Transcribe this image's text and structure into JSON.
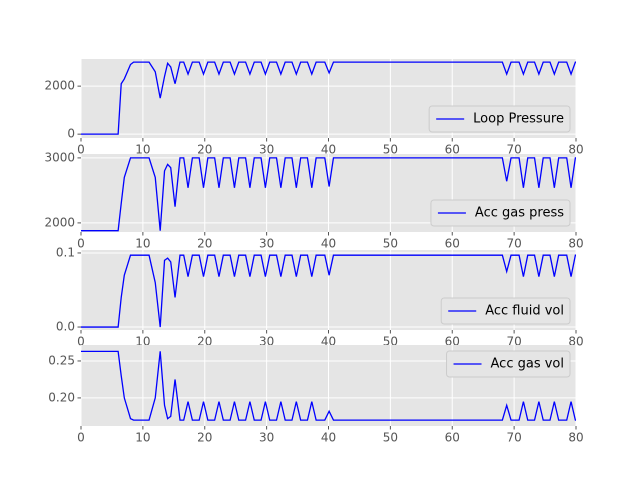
{
  "chart_data": [
    {
      "type": "line",
      "x": [
        0,
        6,
        6.5,
        7,
        8,
        8.5,
        11,
        12,
        12.8,
        13.5,
        14,
        14.5,
        15.2,
        16,
        16.6,
        17.3,
        18,
        19.1,
        19.8,
        20.5,
        21.6,
        22.3,
        23,
        24.1,
        24.8,
        25.5,
        26.6,
        27.3,
        28,
        29.1,
        29.8,
        30.5,
        31.6,
        32.3,
        33,
        34.1,
        34.8,
        35.5,
        36.6,
        37.3,
        38,
        39.4,
        40.1,
        40.8,
        68.1,
        68.8,
        69.5,
        70.8,
        71.5,
        72.2,
        73.3,
        74,
        74.7,
        75.8,
        76.5,
        77.2,
        78.5,
        79.2,
        79.9,
        80
      ],
      "series": [
        {
          "name": "Loop Pressure",
          "color": "#0000ff",
          "values": [
            0,
            0,
            2100,
            2300,
            2900,
            3000,
            3000,
            2600,
            1500,
            2400,
            2950,
            2800,
            2100,
            3000,
            3000,
            2500,
            3000,
            3000,
            2500,
            3000,
            3000,
            2500,
            3000,
            3000,
            2500,
            3000,
            3000,
            2500,
            3000,
            3000,
            2500,
            3000,
            3000,
            2500,
            3000,
            3000,
            2500,
            3000,
            3000,
            2500,
            3000,
            3000,
            2550,
            3000,
            3000,
            2500,
            3000,
            3000,
            2500,
            3000,
            3000,
            2500,
            3000,
            3000,
            2500,
            3000,
            3000,
            2500,
            3000,
            3000
          ]
        }
      ],
      "xlim": [
        0,
        80
      ],
      "xticks": [
        0,
        10,
        20,
        30,
        40,
        50,
        60,
        70,
        80
      ],
      "ylim": [
        -160,
        3130
      ],
      "yticks": [
        0,
        2000
      ],
      "grid": true,
      "legend": "lower right"
    },
    {
      "type": "line",
      "x": [
        0,
        6,
        6.5,
        7,
        8,
        8.5,
        11,
        12,
        12.8,
        13.5,
        14,
        14.5,
        15.2,
        16,
        16.6,
        17.3,
        18,
        19.1,
        19.8,
        20.5,
        21.6,
        22.3,
        23,
        24.1,
        24.8,
        25.5,
        26.6,
        27.3,
        28,
        29.1,
        29.8,
        30.5,
        31.6,
        32.3,
        33,
        34.1,
        34.8,
        35.5,
        36.6,
        37.3,
        38,
        39.4,
        40.1,
        40.8,
        68.1,
        68.8,
        69.5,
        70.8,
        71.5,
        72.2,
        73.3,
        74,
        74.7,
        75.8,
        76.5,
        77.2,
        78.5,
        79.2,
        79.9,
        80
      ],
      "series": [
        {
          "name": "Acc gas press",
          "color": "#0000ff",
          "values": [
            1880,
            1880,
            2300,
            2700,
            3000,
            3000,
            3000,
            2700,
            1880,
            2800,
            2900,
            2850,
            2250,
            3000,
            3000,
            2540,
            3000,
            3000,
            2540,
            3000,
            3000,
            2540,
            3000,
            3000,
            2540,
            3000,
            3000,
            2540,
            3000,
            3000,
            2540,
            3000,
            3000,
            2540,
            3000,
            3000,
            2540,
            3000,
            3000,
            2540,
            3000,
            3000,
            2560,
            3000,
            3000,
            2640,
            3000,
            3000,
            2540,
            3000,
            3000,
            2540,
            3000,
            3000,
            2540,
            3000,
            3000,
            2540,
            3000,
            3000
          ]
        }
      ],
      "xlim": [
        0,
        80
      ],
      "xticks": [
        0,
        10,
        20,
        30,
        40,
        50,
        60,
        70,
        80
      ],
      "ylim": [
        1860,
        3060
      ],
      "yticks": [
        2000,
        3000
      ],
      "grid": true,
      "legend": "lower right"
    },
    {
      "type": "line",
      "x": [
        0,
        6,
        6.5,
        7,
        8,
        8.5,
        11,
        12,
        12.8,
        13.5,
        14,
        14.5,
        15.2,
        16,
        16.6,
        17.3,
        18,
        19.1,
        19.8,
        20.5,
        21.6,
        22.3,
        23,
        24.1,
        24.8,
        25.5,
        26.6,
        27.3,
        28,
        29.1,
        29.8,
        30.5,
        31.6,
        32.3,
        33,
        34.1,
        34.8,
        35.5,
        36.6,
        37.3,
        38,
        39.4,
        40.1,
        40.8,
        68.1,
        68.8,
        69.5,
        70.8,
        71.5,
        72.2,
        73.3,
        74,
        74.7,
        75.8,
        76.5,
        77.2,
        78.5,
        79.2,
        79.9,
        80
      ],
      "series": [
        {
          "name": "Acc fluid vol",
          "color": "#0000ff",
          "values": [
            0,
            0,
            0.04,
            0.07,
            0.097,
            0.097,
            0.097,
            0.06,
            0,
            0.09,
            0.093,
            0.088,
            0.04,
            0.097,
            0.097,
            0.068,
            0.097,
            0.097,
            0.068,
            0.097,
            0.097,
            0.068,
            0.097,
            0.097,
            0.068,
            0.097,
            0.097,
            0.068,
            0.097,
            0.097,
            0.068,
            0.097,
            0.097,
            0.068,
            0.097,
            0.097,
            0.068,
            0.097,
            0.097,
            0.068,
            0.097,
            0.097,
            0.07,
            0.097,
            0.097,
            0.075,
            0.097,
            0.097,
            0.068,
            0.097,
            0.097,
            0.068,
            0.097,
            0.097,
            0.068,
            0.097,
            0.097,
            0.068,
            0.097,
            0.097
          ]
        }
      ],
      "xlim": [
        0,
        80
      ],
      "xticks": [
        0,
        10,
        20,
        30,
        40,
        50,
        60,
        70,
        80
      ],
      "ylim": [
        -0.004,
        0.104
      ],
      "yticks": [
        {
          "value": 0,
          "label": "0.0"
        },
        0.1
      ],
      "grid": true,
      "legend": "lower right"
    },
    {
      "type": "line",
      "x": [
        0,
        6,
        6.5,
        7,
        8,
        8.5,
        11,
        12,
        12.8,
        13.5,
        14,
        14.5,
        15.2,
        16,
        16.6,
        17.3,
        18,
        19.1,
        19.8,
        20.5,
        21.6,
        22.3,
        23,
        24.1,
        24.8,
        25.5,
        26.6,
        27.3,
        28,
        29.1,
        29.8,
        30.5,
        31.6,
        32.3,
        33,
        34.1,
        34.8,
        35.5,
        36.6,
        37.3,
        38,
        39.4,
        40.1,
        40.8,
        68.1,
        68.8,
        69.5,
        70.8,
        71.5,
        72.2,
        73.3,
        74,
        74.7,
        75.8,
        76.5,
        77.2,
        78.5,
        79.2,
        79.9,
        80
      ],
      "series": [
        {
          "name": "Acc gas vol",
          "color": "#0000ff",
          "values": [
            0.263,
            0.263,
            0.23,
            0.2,
            0.172,
            0.17,
            0.17,
            0.2,
            0.263,
            0.19,
            0.172,
            0.175,
            0.225,
            0.17,
            0.17,
            0.195,
            0.17,
            0.17,
            0.195,
            0.17,
            0.17,
            0.195,
            0.17,
            0.17,
            0.195,
            0.17,
            0.17,
            0.195,
            0.17,
            0.17,
            0.195,
            0.17,
            0.17,
            0.195,
            0.17,
            0.17,
            0.195,
            0.17,
            0.17,
            0.195,
            0.17,
            0.17,
            0.182,
            0.17,
            0.17,
            0.19,
            0.17,
            0.17,
            0.195,
            0.17,
            0.17,
            0.195,
            0.17,
            0.17,
            0.195,
            0.17,
            0.17,
            0.195,
            0.17,
            0.17
          ]
        }
      ],
      "xlim": [
        0,
        80
      ],
      "xticks": [
        0,
        10,
        20,
        30,
        40,
        50,
        60,
        70,
        80
      ],
      "ylim": [
        0.162,
        0.2716
      ],
      "yticks": [
        {
          "value": 0.2,
          "label": "0.20"
        },
        0.25
      ],
      "grid": true,
      "legend": "upper right"
    }
  ]
}
